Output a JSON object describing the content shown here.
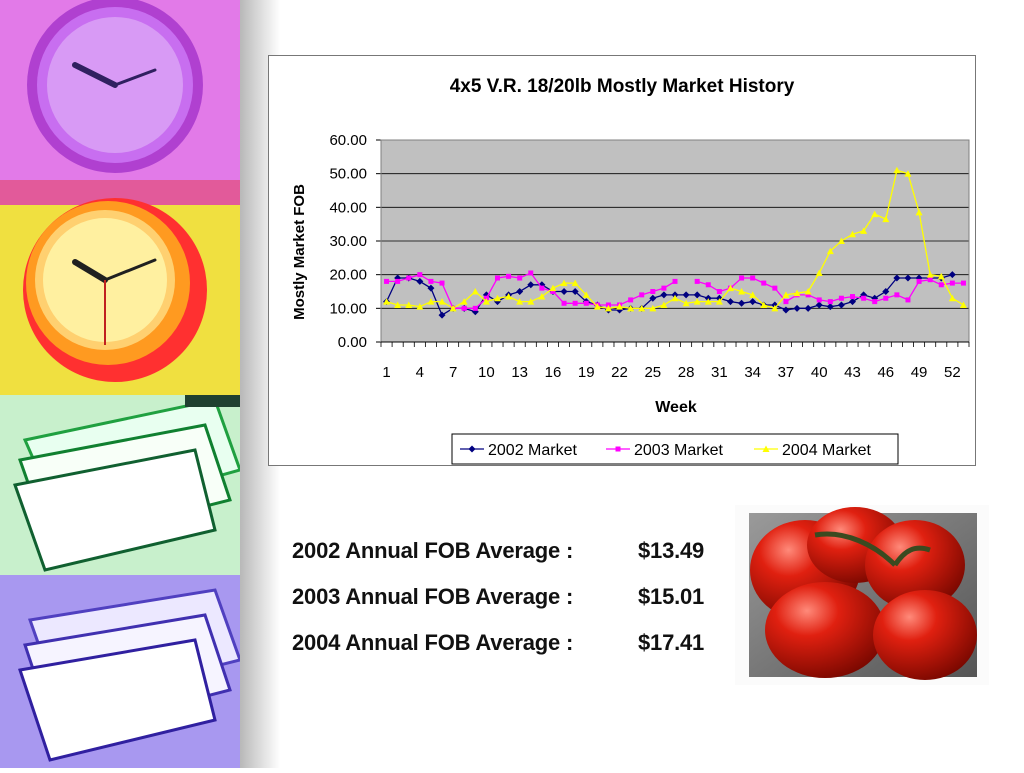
{
  "colors": {
    "accent_2002": "#000080",
    "accent_2003": "#ff00ff",
    "accent_2004": "#ffff00",
    "plot_bg": "#c0c0c0"
  },
  "decor": {
    "left_strip_icons": [
      "clock-icon",
      "clock-icon",
      "papers-icon",
      "papers-icon"
    ],
    "photo": "tomatoes-icon"
  },
  "chart_data": {
    "type": "line",
    "title": "4x5 V.R. 18/20lb Mostly Market History",
    "xlabel": "Week",
    "ylabel": "Mostly Market FOB",
    "ylim": [
      0,
      60
    ],
    "yticks": [
      "0.00",
      "10.00",
      "20.00",
      "30.00",
      "40.00",
      "50.00",
      "60.00"
    ],
    "xtick_labels": [
      "1",
      "4",
      "7",
      "10",
      "13",
      "16",
      "19",
      "22",
      "25",
      "28",
      "31",
      "34",
      "37",
      "40",
      "43",
      "46",
      "49",
      "52"
    ],
    "grid": true,
    "legend_position": "bottom",
    "x": [
      1,
      2,
      3,
      4,
      5,
      6,
      7,
      8,
      9,
      10,
      11,
      12,
      13,
      14,
      15,
      16,
      17,
      18,
      19,
      20,
      21,
      22,
      23,
      24,
      25,
      26,
      27,
      28,
      29,
      30,
      31,
      32,
      33,
      34,
      35,
      36,
      37,
      38,
      39,
      40,
      41,
      42,
      43,
      44,
      45,
      46,
      47,
      48,
      49,
      50,
      51,
      52,
      53
    ],
    "series": [
      {
        "name": "2002 Market",
        "marker": "diamond",
        "values": [
          12,
          19,
          19,
          18,
          16,
          8,
          10,
          10,
          9,
          14,
          12,
          14,
          15,
          17,
          17,
          15,
          15,
          15,
          12,
          11,
          9.5,
          9.5,
          10,
          10,
          13,
          14,
          14,
          14,
          14,
          13,
          13,
          12,
          11.5,
          12,
          11,
          11,
          9.5,
          10,
          10,
          11,
          10.5,
          11,
          12,
          14,
          13,
          15,
          19,
          19,
          19,
          19,
          19,
          20,
          null
        ]
      },
      {
        "name": "2003 Market",
        "marker": "square",
        "values": [
          18,
          18,
          19,
          20,
          18,
          17.5,
          10,
          10,
          10,
          13,
          19,
          19.5,
          19,
          20.5,
          16,
          15,
          11.5,
          11.5,
          11.5,
          11,
          11,
          11,
          12.5,
          14,
          15,
          16,
          18,
          null,
          18,
          17,
          15,
          16,
          19,
          19,
          17.5,
          16,
          12,
          14,
          14,
          12.5,
          12,
          13,
          13.5,
          13,
          12,
          13,
          14,
          12.5,
          18,
          18.5,
          17,
          17.5,
          17.5
        ]
      },
      {
        "name": "2004 Market",
        "marker": "triangle",
        "values": [
          12,
          11,
          11,
          10.5,
          12,
          12,
          10,
          12,
          15,
          12,
          13,
          13.5,
          12,
          12,
          13.5,
          16,
          17.5,
          17.5,
          14,
          10.5,
          10,
          10.5,
          10,
          10,
          10,
          11,
          13,
          11.5,
          12,
          12,
          12,
          16,
          15,
          14,
          11,
          10,
          14,
          14.5,
          15,
          20.5,
          27,
          30,
          32,
          33,
          38,
          36.5,
          51,
          50,
          38.5,
          20,
          19.5,
          13,
          11
        ]
      }
    ]
  },
  "averages": [
    {
      "label": "2002 Annual FOB Average :",
      "value": "$13.49"
    },
    {
      "label": "2003 Annual FOB Average :",
      "value": "$15.01"
    },
    {
      "label": "2004 Annual FOB Average :",
      "value": "$17.41"
    }
  ]
}
